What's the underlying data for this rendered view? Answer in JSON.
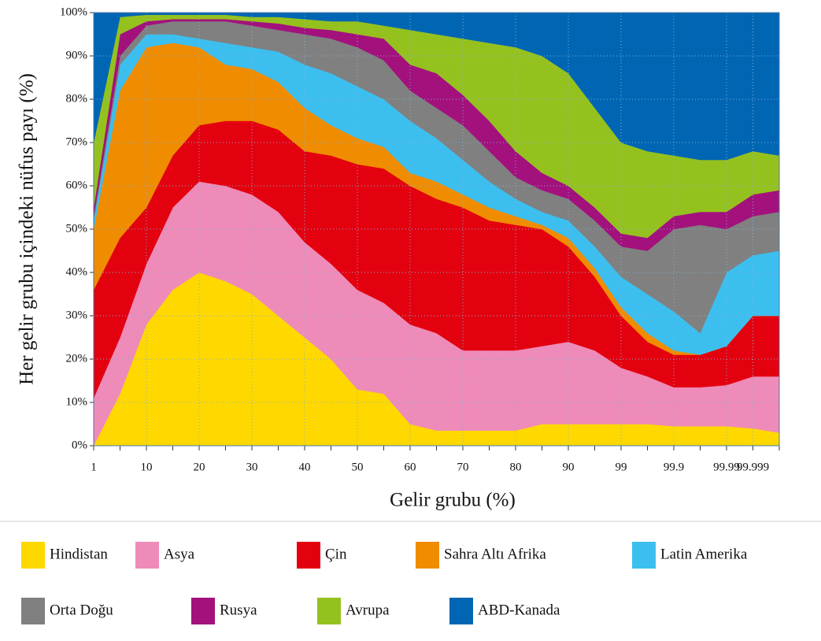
{
  "chart_data": {
    "type": "stacked_area",
    "ylabel": "Her gelir grubu içindeki nüfus payı (%)",
    "xlabel": "Gelir grubu (%)",
    "categories": [
      "1",
      null,
      "10",
      null,
      "20",
      null,
      "30",
      null,
      "40",
      null,
      "50",
      null,
      "60",
      null,
      "70",
      null,
      "80",
      null,
      "90",
      null,
      "99",
      null,
      "99.9",
      null,
      "99.99",
      "99.999",
      null
    ],
    "ylim": [
      0,
      100
    ],
    "yticks": [
      {
        "value": 0,
        "label": "0%"
      },
      {
        "value": 10,
        "label": "10%"
      },
      {
        "value": 20,
        "label": "20%"
      },
      {
        "value": 30,
        "label": "30%"
      },
      {
        "value": 40,
        "label": "40%"
      },
      {
        "value": 50,
        "label": "50%"
      },
      {
        "value": 60,
        "label": "60%"
      },
      {
        "value": 70,
        "label": "70%"
      },
      {
        "value": 80,
        "label": "80%"
      },
      {
        "value": 90,
        "label": "90%"
      },
      {
        "value": 100,
        "label": "100%"
      }
    ],
    "grid": true,
    "legend": "bottom",
    "series": [
      {
        "name": "Hindistan",
        "color": "#ffd800",
        "values": [
          0,
          12,
          28,
          36,
          40,
          38,
          35,
          30,
          25,
          20,
          13,
          12,
          5,
          3.5,
          3.5,
          3.5,
          3.5,
          5,
          5,
          5,
          5,
          5,
          4.5,
          4.5,
          4.5,
          4,
          3
        ]
      },
      {
        "name": "Asya",
        "color": "#ef8bb8",
        "values": [
          11,
          13,
          14,
          19,
          21,
          22,
          23,
          24,
          22,
          22,
          23,
          21,
          23,
          22.5,
          18.5,
          18.5,
          18.5,
          18,
          19,
          17,
          13,
          11,
          9,
          9,
          9.5,
          12,
          13
        ]
      },
      {
        "name": "Çin",
        "color": "#e3000f",
        "values": [
          25,
          23,
          13,
          12,
          13,
          15,
          17,
          19,
          21,
          25,
          29,
          31,
          32,
          31,
          33,
          30,
          29,
          27,
          22,
          17,
          12,
          8,
          7.5,
          7.5,
          9,
          14,
          14
        ]
      },
      {
        "name": "Sahra Altı Afrika",
        "color": "#f08c00",
        "values": [
          14,
          34,
          37,
          26,
          18,
          13,
          12,
          11,
          10,
          7,
          6,
          5,
          3,
          4,
          3,
          3,
          2,
          1,
          2,
          2,
          2,
          2,
          1,
          0,
          0,
          0,
          0
        ]
      },
      {
        "name": "Latin Amerika",
        "color": "#3cbfef",
        "values": [
          2,
          6,
          3,
          2,
          2,
          5,
          5,
          7,
          10,
          12,
          12,
          11,
          12,
          10,
          8,
          6,
          4,
          3,
          4,
          5,
          7,
          9,
          9,
          5,
          17,
          14,
          15
        ]
      },
      {
        "name": "Orta Doğu",
        "color": "#808080",
        "values": [
          1,
          2,
          2,
          3,
          4,
          5,
          5,
          5,
          7,
          8,
          9,
          9,
          7,
          7,
          8,
          7,
          5,
          5,
          5,
          6,
          7,
          10,
          19,
          25,
          10,
          9,
          9
        ]
      },
      {
        "name": "Rusya",
        "color": "#a3117d",
        "values": [
          2,
          5,
          1,
          0.5,
          0.5,
          0.5,
          1,
          1.5,
          1.5,
          2,
          3,
          5,
          6,
          8,
          7,
          7,
          6,
          4,
          3,
          3,
          3,
          3,
          3,
          3,
          4,
          5,
          5
        ]
      },
      {
        "name": "Avrupa",
        "color": "#95c11f",
        "values": [
          15,
          4,
          1.5,
          1,
          1,
          1,
          1,
          1.5,
          2,
          2,
          3,
          3,
          8,
          9,
          13,
          18,
          24,
          27,
          26,
          23,
          21,
          20,
          14,
          12,
          12,
          10,
          8
        ]
      },
      {
        "name": "ABD-Kanada",
        "color": "#0066b3",
        "values": [
          30,
          1,
          0.5,
          0.5,
          0.5,
          0.5,
          1,
          1,
          1.5,
          2,
          2,
          3,
          4,
          5,
          6,
          7,
          8,
          10,
          14,
          22,
          30,
          32,
          33,
          34,
          34,
          32,
          33
        ]
      }
    ]
  }
}
